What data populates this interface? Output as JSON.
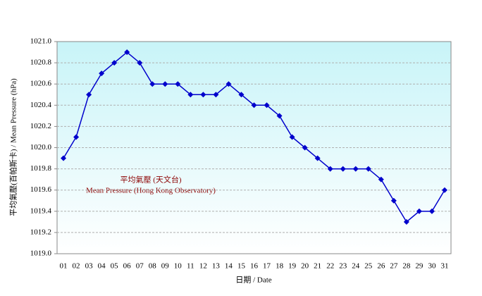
{
  "chart_data": {
    "type": "line",
    "y_label": "平均氣壓(百帕斯卡) / Mean Pressure (hPa)",
    "x_label": "日期 / Date",
    "annotation": [
      "平均氣壓 (天文台)",
      "Mean Pressure (Hong Kong Observatory)"
    ],
    "categories": [
      "01",
      "02",
      "03",
      "04",
      "05",
      "06",
      "07",
      "08",
      "09",
      "10",
      "11",
      "12",
      "13",
      "14",
      "15",
      "16",
      "17",
      "18",
      "19",
      "20",
      "21",
      "22",
      "23",
      "24",
      "25",
      "26",
      "27",
      "28",
      "29",
      "30",
      "31"
    ],
    "series": [
      {
        "name": "Mean Pressure",
        "color": "#0000cc",
        "values": [
          1019.9,
          1020.1,
          1020.5,
          1020.7,
          1020.8,
          1020.9,
          1020.8,
          1020.6,
          1020.6,
          1020.6,
          1020.5,
          1020.5,
          1020.5,
          1020.6,
          1020.5,
          1020.4,
          1020.4,
          1020.3,
          1020.1,
          1020.0,
          1019.9,
          1019.8,
          1019.8,
          1019.8,
          1019.8,
          1019.7,
          1019.5,
          1019.3,
          1019.4,
          1019.4,
          1019.6
        ]
      }
    ],
    "ylim": [
      1019.0,
      1021.0
    ],
    "yticks": [
      {
        "value": 1019.0,
        "label": "1019.0"
      },
      {
        "value": 1019.2,
        "label": "1019.2"
      },
      {
        "value": 1019.4,
        "label": "1019.4"
      },
      {
        "value": 1019.6,
        "label": "1019.6"
      },
      {
        "value": 1019.8,
        "label": "1019.8"
      },
      {
        "value": 1020.0,
        "label": "1020.0"
      },
      {
        "value": 1020.2,
        "label": "1020.2"
      },
      {
        "value": 1020.4,
        "label": "1020.4"
      },
      {
        "value": 1020.6,
        "label": "1020.6"
      },
      {
        "value": 1020.8,
        "label": "1020.8"
      },
      {
        "value": 1021.0,
        "label": "1021.0"
      }
    ],
    "grid": true
  }
}
